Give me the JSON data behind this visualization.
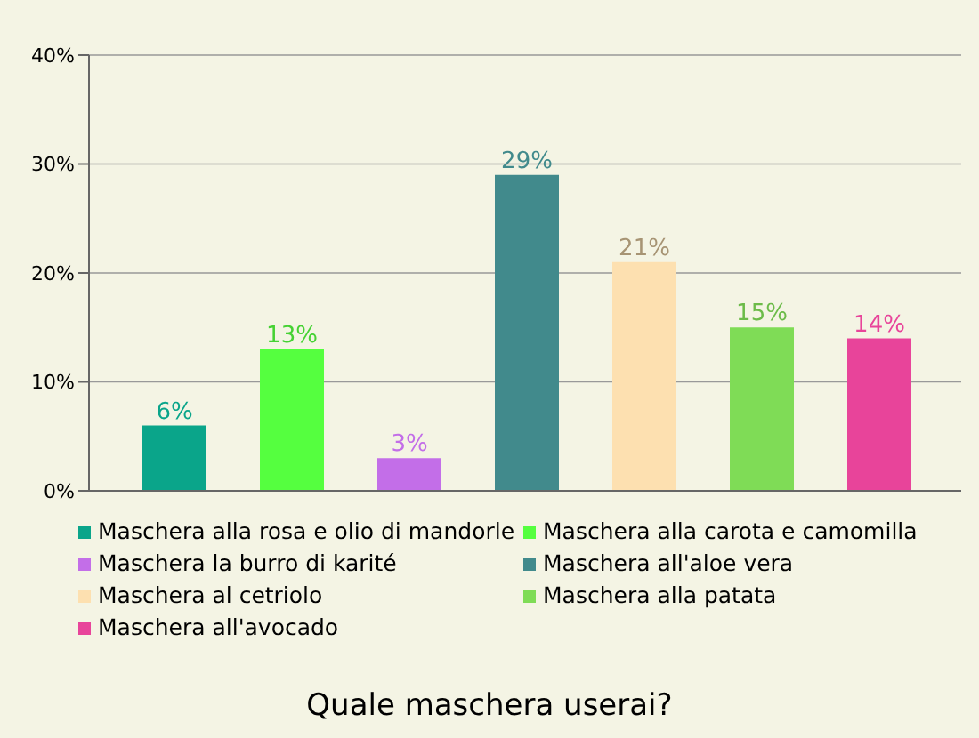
{
  "chart_data": {
    "type": "bar",
    "title": "Quale maschera userai?",
    "categories": [
      null
    ],
    "series": [
      {
        "name": "Maschera alla rosa e olio di mandorle",
        "color": "#0aa58a",
        "values": [
          6
        ],
        "value_labels": [
          "6%"
        ]
      },
      {
        "name": "Maschera alla carota e camomilla",
        "color": "#55ff3f",
        "values": [
          13
        ],
        "value_labels": [
          "13%"
        ]
      },
      {
        "name": "Maschera la burro di karité",
        "color": "#c36ee8",
        "values": [
          3
        ],
        "value_labels": [
          "3%"
        ]
      },
      {
        "name": "Maschera all'aloe vera",
        "color": "#418a8c",
        "values": [
          29
        ],
        "value_labels": [
          "29%"
        ]
      },
      {
        "name": "Maschera al cetriolo",
        "color": "#fde0b0",
        "values": [
          21
        ],
        "value_labels": [
          "21%"
        ]
      },
      {
        "name": "Maschera alla patata",
        "color": "#7fdc56",
        "values": [
          15
        ],
        "value_labels": [
          "15%"
        ]
      },
      {
        "name": "Maschera all'avocado",
        "color": "#e8449a",
        "values": [
          14
        ],
        "value_labels": [
          "14%"
        ]
      }
    ],
    "ylim": [
      0,
      40
    ],
    "yticks": [
      {
        "value": 0,
        "label": "0%"
      },
      {
        "value": 10,
        "label": "10%"
      },
      {
        "value": 20,
        "label": "20%"
      },
      {
        "value": 30,
        "label": "30%"
      },
      {
        "value": 40,
        "label": "40%"
      }
    ],
    "grid": "y",
    "legend": "bottom",
    "tick_labels": "y"
  }
}
